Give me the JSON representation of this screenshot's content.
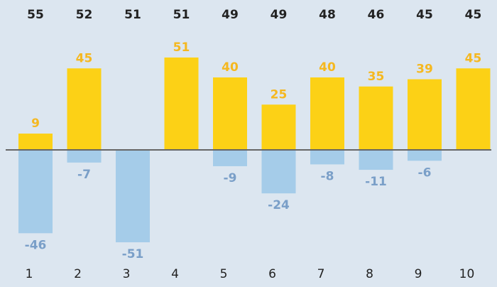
{
  "chart_data": {
    "type": "bar",
    "categories": [
      "1",
      "2",
      "3",
      "4",
      "5",
      "6",
      "7",
      "8",
      "9",
      "10"
    ],
    "totals": [
      55,
      52,
      51,
      51,
      49,
      49,
      48,
      46,
      45,
      45
    ],
    "series": [
      {
        "values": [
          9,
          45,
          0,
          51,
          40,
          25,
          40,
          35,
          39,
          45
        ],
        "color": "#fcd116",
        "label_color": "#f5b820"
      },
      {
        "values": [
          -46,
          -7,
          -51,
          0,
          -9,
          -24,
          -8,
          -11,
          -6,
          0
        ],
        "color": "#a5cce9",
        "label_color": "#7a9fc8"
      }
    ],
    "total_label_color": "#222222",
    "baseline_color": "#666666",
    "category_label_color": "#222222",
    "ylim": [
      -60,
      60
    ]
  }
}
